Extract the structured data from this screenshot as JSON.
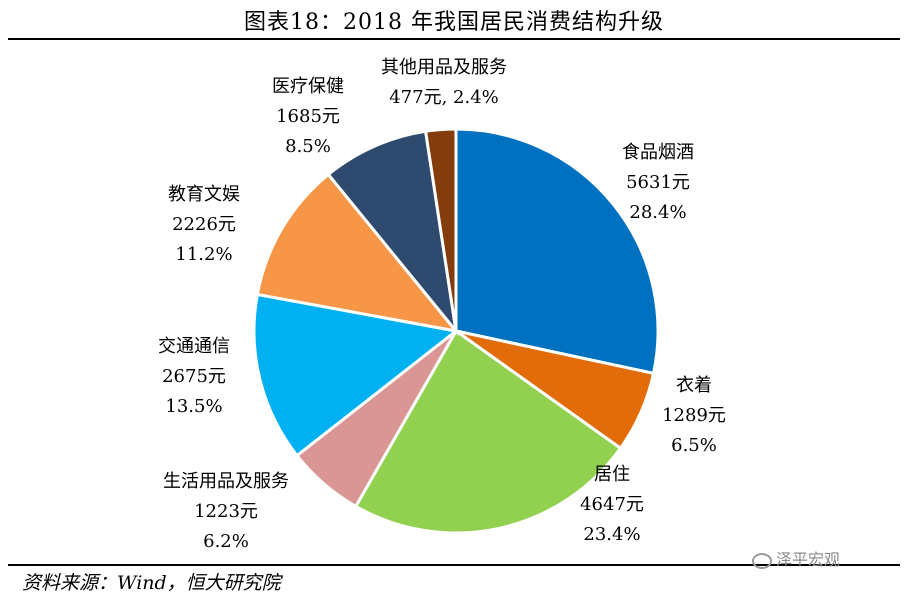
{
  "page": {
    "title": "图表18：2018 年我国居民消费结构升级",
    "source": "资料来源：Wind，恒大研究院",
    "watermark": "泽平宏观"
  },
  "chart_data": {
    "type": "pie",
    "title": "图表18：2018 年我国居民消费结构升级",
    "start": "12 o'clock",
    "direction": "clockwise",
    "slices": [
      {
        "name": "食品烟酒",
        "value": 5631,
        "value_label": "5631元",
        "percent_label": "28.4%",
        "color": "#0070C0"
      },
      {
        "name": "衣着",
        "value": 1289,
        "value_label": "1289元",
        "percent_label": "6.5%",
        "color": "#E36C0A"
      },
      {
        "name": "居住",
        "value": 4647,
        "value_label": "4647元",
        "percent_label": "23.4%",
        "color": "#92D050"
      },
      {
        "name": "生活用品及服务",
        "value": 1223,
        "value_label": "1223元",
        "percent_label": "6.2%",
        "color": "#D99694"
      },
      {
        "name": "交通通信",
        "value": 2675,
        "value_label": "2675元",
        "percent_label": "13.5%",
        "color": "#00B0F0"
      },
      {
        "name": "教育文娱",
        "value": 2226,
        "value_label": "2226元",
        "percent_label": "11.2%",
        "color": "#F79646"
      },
      {
        "name": "医疗保健",
        "value": 1685,
        "value_label": "1685元",
        "percent_label": "8.5%",
        "color": "#2E4A6E"
      },
      {
        "name": "其他用品及服务",
        "value": 477,
        "value_label": "477元, 2.4%",
        "percent_label": "",
        "color": "#843C0C"
      }
    ]
  }
}
